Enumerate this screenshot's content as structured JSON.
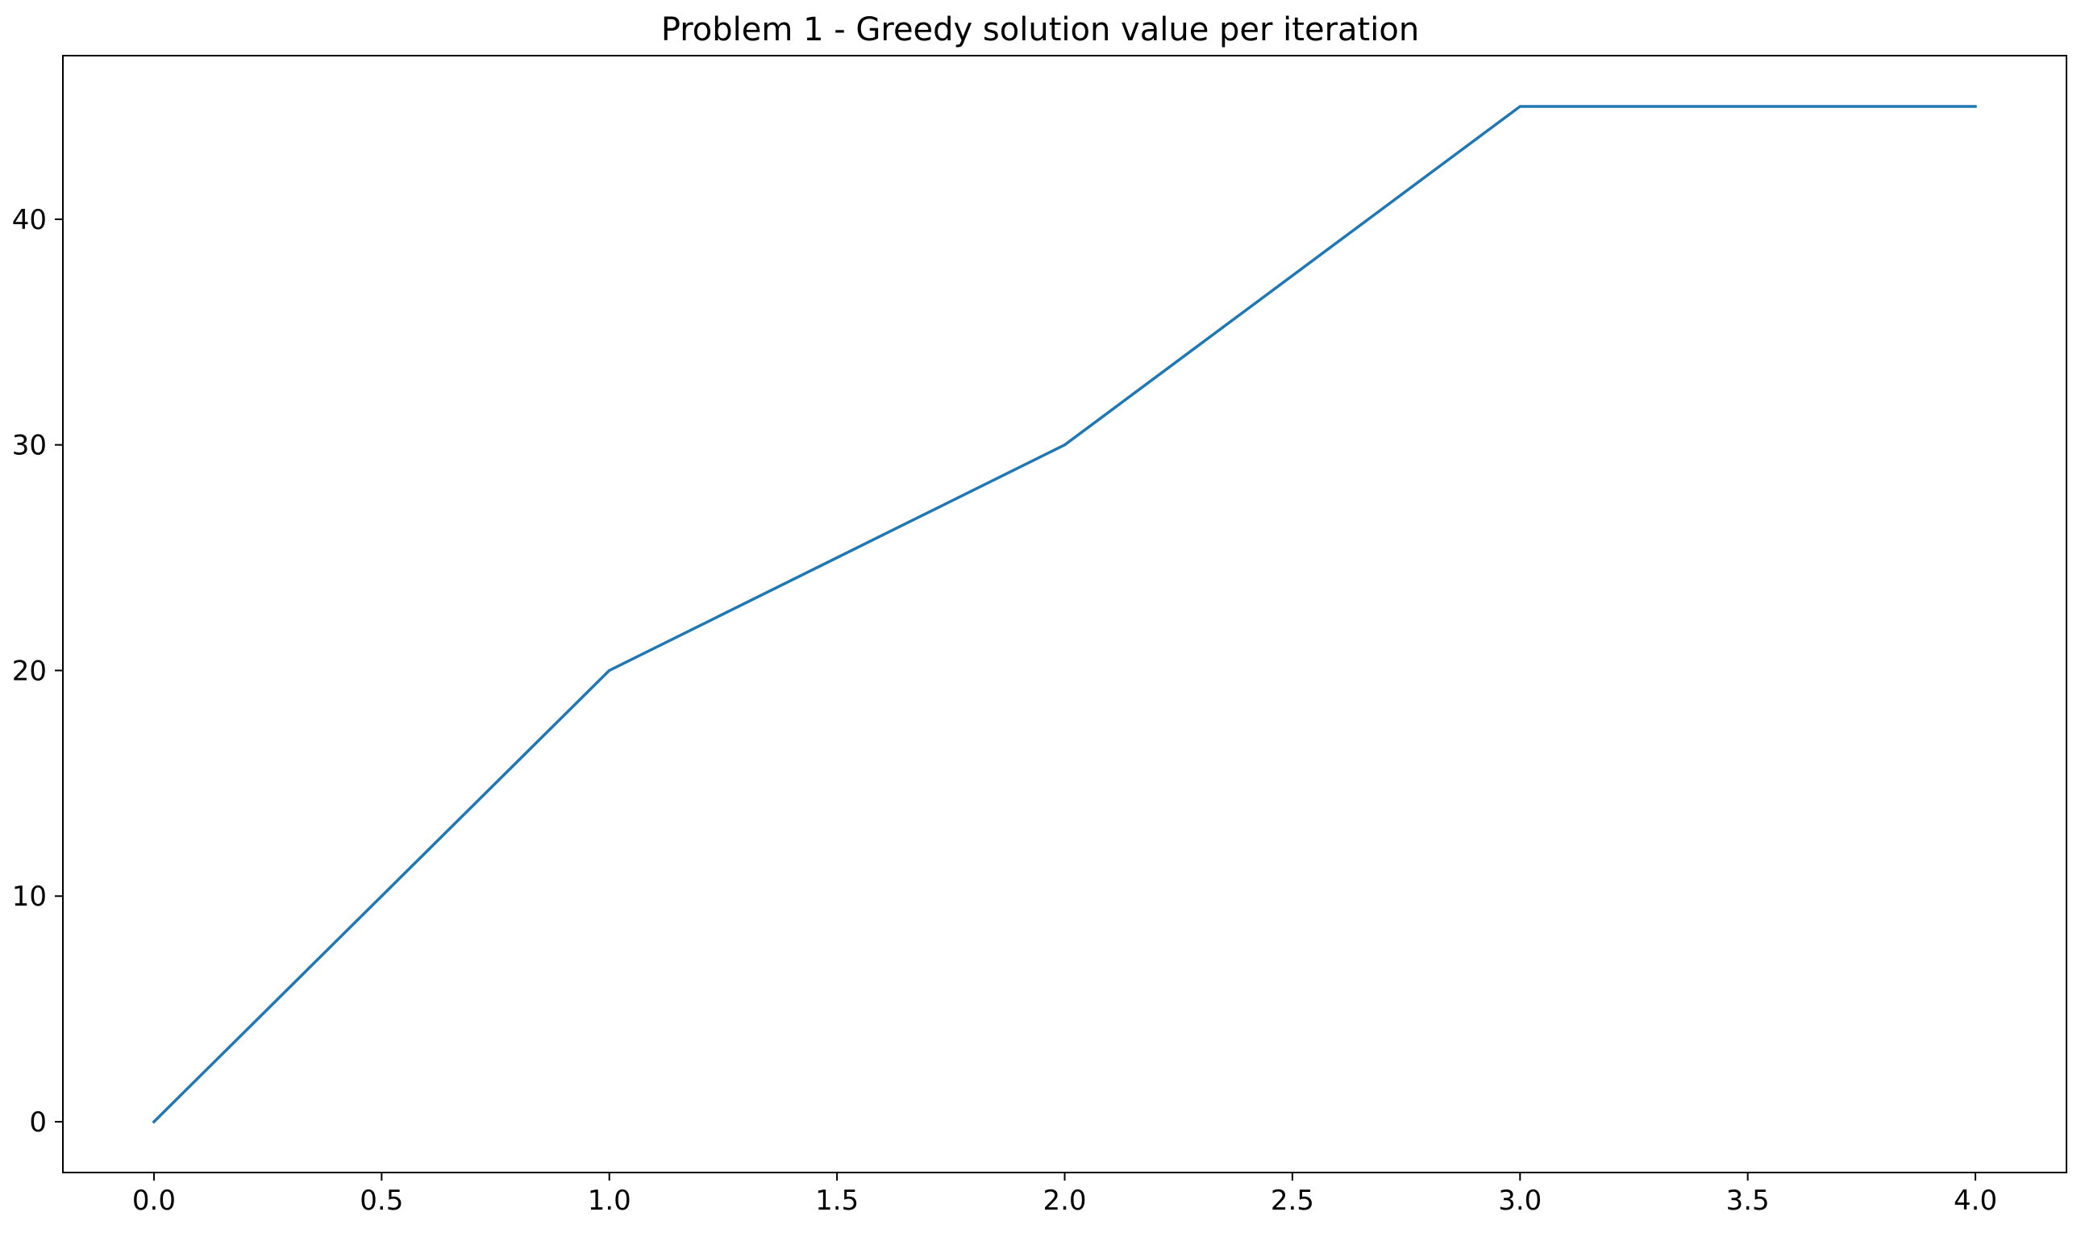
{
  "chart_data": {
    "type": "line",
    "title": "Problem 1 - Greedy solution value per iteration",
    "xlabel": "",
    "ylabel": "",
    "xlim": [
      -0.2,
      4.2
    ],
    "ylim": [
      -2.25,
      47.25
    ],
    "xticks": [
      0.0,
      0.5,
      1.0,
      1.5,
      2.0,
      2.5,
      3.0,
      3.5,
      4.0
    ],
    "xtick_labels": [
      "0.0",
      "0.5",
      "1.0",
      "1.5",
      "2.0",
      "2.5",
      "3.0",
      "3.5",
      "4.0"
    ],
    "yticks": [
      0,
      10,
      20,
      30,
      40
    ],
    "ytick_labels": [
      "0",
      "10",
      "20",
      "30",
      "40"
    ],
    "grid": false,
    "legend": "none",
    "series": [
      {
        "x": [
          0,
          1,
          2,
          3,
          4
        ],
        "values": [
          0,
          20,
          30,
          45,
          45
        ],
        "color": "#1f77b4"
      }
    ]
  }
}
